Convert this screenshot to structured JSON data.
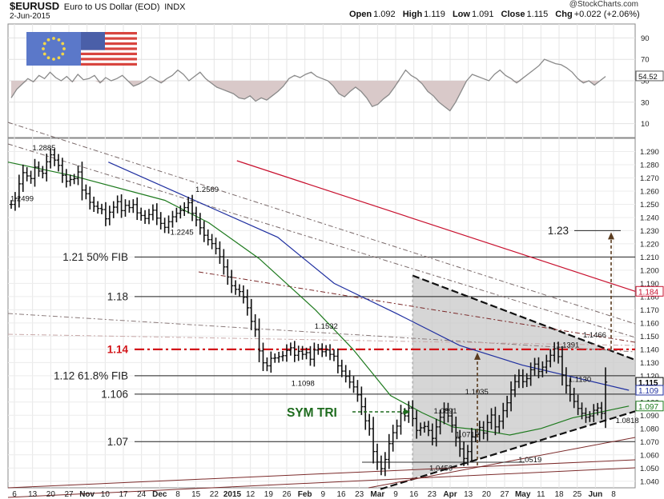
{
  "header": {
    "symbol": "$EURUSD",
    "name": "Euro to US Dollar (EOD)",
    "exchange": "INDX",
    "date": "2-Jun-2015",
    "brand": "@StockCharts.com",
    "stats": {
      "open_label": "Open",
      "open": "1.092",
      "high_label": "High",
      "high": "1.119",
      "low_label": "Low",
      "low": "1.091",
      "close_label": "Close",
      "close": "1.115",
      "chg_label": "Chg",
      "chg": "+0.022 (+2.06%)"
    }
  },
  "icons": {
    "flags": "eu-us-flags-icon"
  },
  "chart_data": [
    {
      "type": "line",
      "panel": "indicator",
      "ylim": [
        0,
        100
      ],
      "yticks": [
        10,
        30,
        50,
        70,
        90
      ],
      "reference_level": 50,
      "last_value_label": "54.52",
      "series": [
        {
          "values": [
            34,
            42,
            47,
            52,
            49,
            55,
            52,
            58,
            53,
            50,
            54,
            49,
            56,
            51,
            52,
            55,
            48,
            53,
            50,
            52,
            55,
            50,
            45,
            47,
            50,
            54,
            51,
            48,
            52,
            55,
            60,
            56,
            50,
            54,
            58,
            52,
            48,
            44,
            42,
            40,
            38,
            34,
            33,
            36,
            31,
            34,
            32,
            36,
            40,
            45,
            52,
            55,
            53,
            56,
            58,
            54,
            52,
            50,
            45,
            38,
            35,
            40,
            44,
            40,
            34,
            26,
            28,
            33,
            37,
            44,
            52,
            60,
            55,
            52,
            47,
            40,
            36,
            30,
            26,
            22,
            30,
            40,
            50,
            56,
            54,
            52,
            50,
            56,
            60,
            55,
            52,
            48,
            52,
            56,
            60,
            64,
            70,
            68,
            66,
            65,
            62,
            58,
            52,
            48,
            50,
            46,
            50,
            54
          ]
        }
      ]
    },
    {
      "type": "line",
      "panel": "price",
      "title": "$EURUSD",
      "ylim": [
        1.035,
        1.3
      ],
      "yticks": [
        "1.290",
        "1.280",
        "1.270",
        "1.260",
        "1.250",
        "1.240",
        "1.230",
        "1.220",
        "1.210",
        "1.200",
        "1.190",
        "1.180",
        "1.170",
        "1.160",
        "1.150",
        "1.140",
        "1.130",
        "1.120",
        "1.110",
        "1.100",
        "1.090",
        "1.080",
        "1.070",
        "1.060",
        "1.050",
        "1.040"
      ],
      "x_tick_labels": [
        "6",
        "13",
        "20",
        "27",
        "Nov",
        "10",
        "17",
        "24",
        "Dec",
        "8",
        "15",
        "22",
        "2015",
        "12",
        "19",
        "26",
        "Feb",
        "9",
        "16",
        "23",
        "Mar",
        "9",
        "16",
        "23",
        "Apr",
        "13",
        "20",
        "27",
        "May",
        "11",
        "18",
        "25",
        "Jun",
        "8"
      ],
      "price_axis_labels": [
        {
          "text": "1.184",
          "value": 1.184,
          "color": "#c8102e"
        },
        {
          "text": "1.115",
          "value": 1.115,
          "color": "#000000"
        },
        {
          "text": "1.109",
          "value": 1.109,
          "color": "#1f2fa0"
        },
        {
          "text": "1.097",
          "value": 1.097,
          "color": "#1e7a1e"
        }
      ],
      "close_values": [
        1.2499,
        1.2545,
        1.2655,
        1.274,
        1.2715,
        1.2695,
        1.2782,
        1.2752,
        1.2735,
        1.2822,
        1.2875,
        1.2835,
        1.2795,
        1.272,
        1.2675,
        1.2688,
        1.2695,
        1.2745,
        1.2608,
        1.258,
        1.2515,
        1.2485,
        1.2468,
        1.246,
        1.239,
        1.244,
        1.2478,
        1.252,
        1.2452,
        1.2492,
        1.2475,
        1.2498,
        1.2435,
        1.2415,
        1.2392,
        1.2422,
        1.2455,
        1.2395,
        1.2355,
        1.2325,
        1.2368,
        1.2405,
        1.2432,
        1.2452,
        1.2475,
        1.2512,
        1.2432,
        1.2382,
        1.2322,
        1.2265,
        1.2232,
        1.2202,
        1.2165,
        1.2102,
        1.2025,
        1.1948,
        1.1882,
        1.1855,
        1.1838,
        1.1795,
        1.1715,
        1.1612,
        1.1548,
        1.1388,
        1.1298,
        1.1275,
        1.1332,
        1.1335,
        1.1345,
        1.1352,
        1.1392,
        1.1412,
        1.1355,
        1.1385,
        1.1362,
        1.1375,
        1.1325,
        1.1395,
        1.1405,
        1.1382,
        1.1395,
        1.1362,
        1.1348,
        1.1275,
        1.1235,
        1.1195,
        1.1152,
        1.1115,
        1.1055,
        1.0965,
        1.0858,
        1.0798,
        1.0625,
        1.0545,
        1.0495,
        1.0565,
        1.0685,
        1.0768,
        1.0818,
        1.0915,
        1.0895,
        1.0955,
        1.0875,
        1.0785,
        1.0805,
        1.0815,
        1.0785,
        1.0725,
        1.0812,
        1.0885,
        1.0945,
        1.0895,
        1.0825,
        1.0728,
        1.0645,
        1.0572,
        1.0625,
        1.0735,
        1.0755,
        1.0808,
        1.0765,
        1.0845,
        1.0902,
        1.0812,
        1.0855,
        1.0935,
        1.0995,
        1.1092,
        1.1155,
        1.1201,
        1.1155,
        1.1178,
        1.1245,
        1.1288,
        1.1232,
        1.1265,
        1.1311,
        1.1355,
        1.1405,
        1.1345,
        1.1205,
        1.1125,
        1.1058,
        1.1005,
        1.0952,
        1.0915,
        1.0885,
        1.0895,
        1.0938,
        1.0955,
        1.0915,
        1.1152
      ],
      "series": [
        {
          "name": "",
          "color": "#c8102e",
          "points": [
            [
              0.365,
              1.283
            ],
            [
              1.0,
              1.184
            ]
          ]
        },
        {
          "name": "",
          "color": "#1f2fa0",
          "points": [
            [
              0.16,
              1.282
            ],
            [
              0.43,
              1.225
            ],
            [
              0.52,
              1.19
            ],
            [
              0.62,
              1.167
            ],
            [
              0.72,
              1.143
            ],
            [
              0.82,
              1.128
            ],
            [
              0.99,
              1.109
            ]
          ]
        },
        {
          "name": "",
          "color": "#1e7a1e",
          "points": [
            [
              0.0,
              1.282
            ],
            [
              0.1,
              1.272
            ],
            [
              0.25,
              1.253
            ],
            [
              0.32,
              1.236
            ],
            [
              0.4,
              1.209
            ],
            [
              0.49,
              1.17
            ],
            [
              0.55,
              1.14
            ],
            [
              0.61,
              1.105
            ],
            [
              0.66,
              1.092
            ],
            [
              0.71,
              1.081
            ],
            [
              0.75,
              1.079
            ],
            [
              0.8,
              1.075
            ],
            [
              0.85,
              1.08
            ],
            [
              0.9,
              1.088
            ],
            [
              0.95,
              1.093
            ],
            [
              0.99,
              1.097
            ]
          ]
        }
      ],
      "horizontal_levels": [
        {
          "label": "1.21  50% FIB",
          "value": 1.21
        },
        {
          "label": "1.18",
          "value": 1.18
        },
        {
          "label": "1.14",
          "value": 1.14,
          "color": "#d3151a"
        },
        {
          "label": "1.12  61.8% FIB",
          "value": 1.12
        },
        {
          "label": "1.106",
          "value": 1.106
        },
        {
          "label": "1.07",
          "value": 1.07
        }
      ],
      "target": {
        "label": "1.23",
        "value": 1.23
      },
      "pattern": {
        "label": "SYM TRI",
        "apex_top": {
          "x": 0.645,
          "y": 1.196
        },
        "apex_bottom": {
          "x": 0.645,
          "y": 1.042
        },
        "right_top": {
          "x": 1.0,
          "y": 1.132
        },
        "right_bottom": {
          "x": 1.0,
          "y": 1.093
        }
      },
      "annotations": [
        {
          "text": "1.2885",
          "x": 0.035,
          "y": 1.2885
        },
        {
          "text": "1.2499",
          "x": 0.0,
          "y": 1.2499
        },
        {
          "text": "1.2569",
          "x": 0.295,
          "y": 1.2569
        },
        {
          "text": "1.2245",
          "x": 0.255,
          "y": 1.2245
        },
        {
          "text": "1.1532",
          "x": 0.485,
          "y": 1.1532
        },
        {
          "text": "1.1098",
          "x": 0.448,
          "y": 1.1098
        },
        {
          "text": "1.0891",
          "x": 0.675,
          "y": 1.0891
        },
        {
          "text": "1.1035",
          "x": 0.725,
          "y": 1.1035
        },
        {
          "text": "1.0712",
          "x": 0.71,
          "y": 1.0712
        },
        {
          "text": "1.0456",
          "x": 0.668,
          "y": 1.0456
        },
        {
          "text": "1.0519",
          "x": 0.81,
          "y": 1.0519
        },
        {
          "text": "1.1391",
          "x": 0.87,
          "y": 1.1391
        },
        {
          "text": "1.1466",
          "x": 0.913,
          "y": 1.1466
        },
        {
          "text": "1.1130",
          "x": 0.89,
          "y": 1.113
        },
        {
          "text": "1.0818",
          "x": 0.965,
          "y": 1.0818
        }
      ]
    }
  ]
}
